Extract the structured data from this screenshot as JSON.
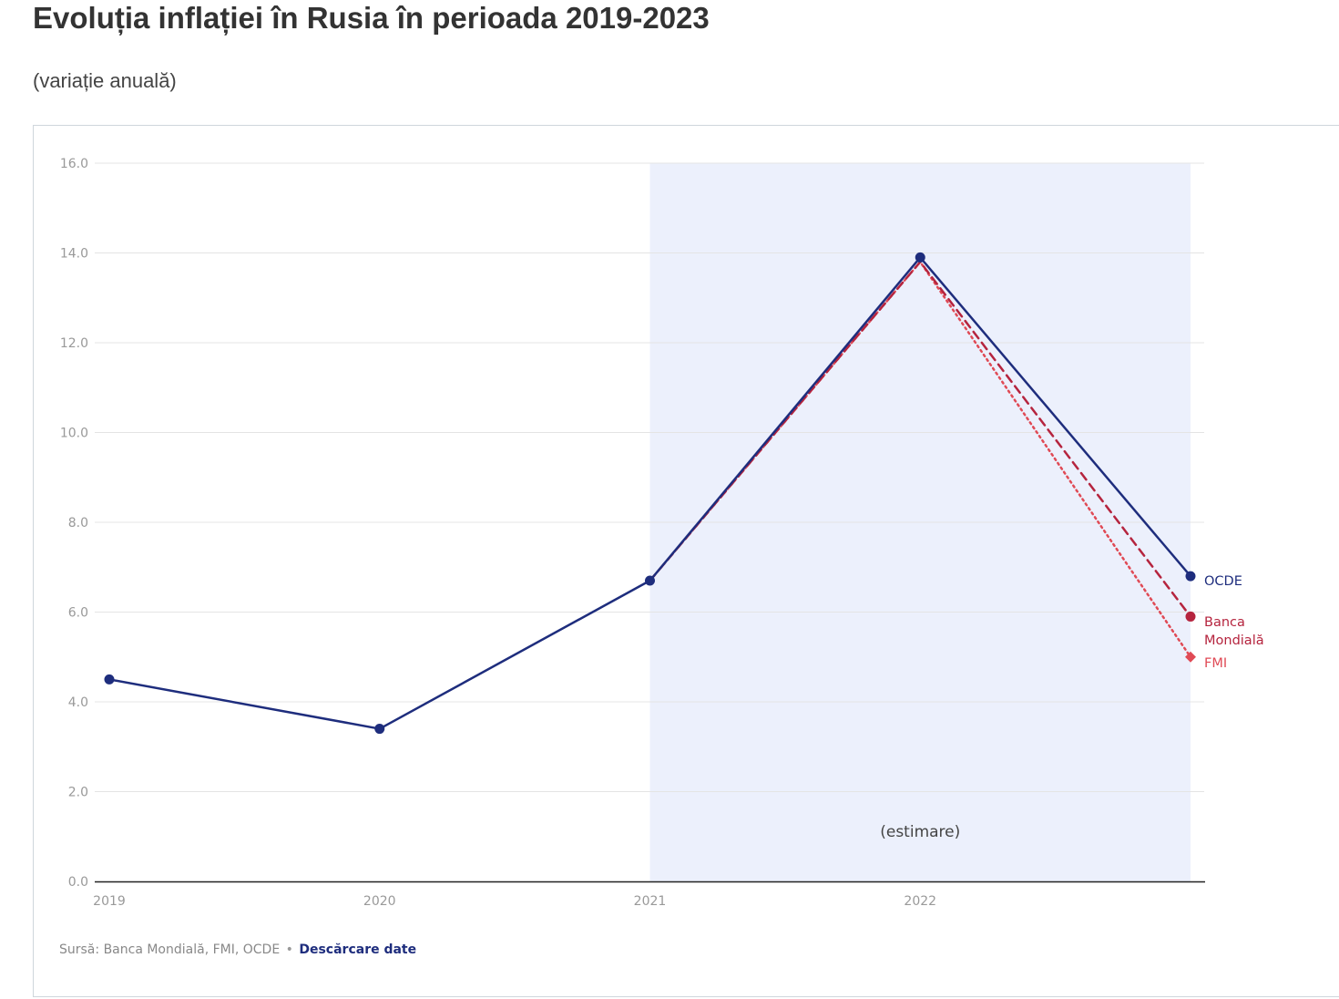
{
  "header": {
    "title": "Evoluția inflației în Rusia în perioada 2019-2023",
    "subtitle": "(variație anuală)"
  },
  "footer": {
    "source_label": "Sursă:",
    "source_text": "Banca Mondială, FMI, OCDE",
    "separator": "•",
    "download_link": "Descărcare date"
  },
  "chart_data": {
    "type": "line",
    "title": "Evoluția inflației în Rusia în perioada 2019-2023",
    "subtitle": "(variație anuală)",
    "x": [
      2019,
      2020,
      2021,
      2022,
      2023
    ],
    "x_tick_labels": [
      "2019",
      "2020",
      "2021",
      "2022"
    ],
    "ylim": [
      0,
      16
    ],
    "y_ticks": [
      "0.0",
      "2.0",
      "4.0",
      "6.0",
      "8.0",
      "10.0",
      "12.0",
      "14.0",
      "16.0"
    ],
    "grid": true,
    "shaded_region": {
      "x_from": 2021,
      "x_to": 2023,
      "label": "(estimare)",
      "color": "#ecf0fc"
    },
    "series": [
      {
        "name": "OCDE",
        "label_lines": [
          "OCDE"
        ],
        "values": [
          4.5,
          3.4,
          6.7,
          13.9,
          6.8
        ],
        "color": "#1e2d7d",
        "style": "solid",
        "marker": "circle"
      },
      {
        "name": "Banca Mondială",
        "label_lines": [
          "Banca",
          "Mondială"
        ],
        "values": [
          null,
          null,
          6.7,
          13.8,
          5.9
        ],
        "color": "#b5243e",
        "style": "dashed",
        "marker": "circle"
      },
      {
        "name": "FMI",
        "label_lines": [
          "FMI"
        ],
        "values": [
          null,
          null,
          6.7,
          13.8,
          5.0
        ],
        "color": "#e04a55",
        "style": "dotted",
        "marker": "diamond"
      }
    ]
  }
}
